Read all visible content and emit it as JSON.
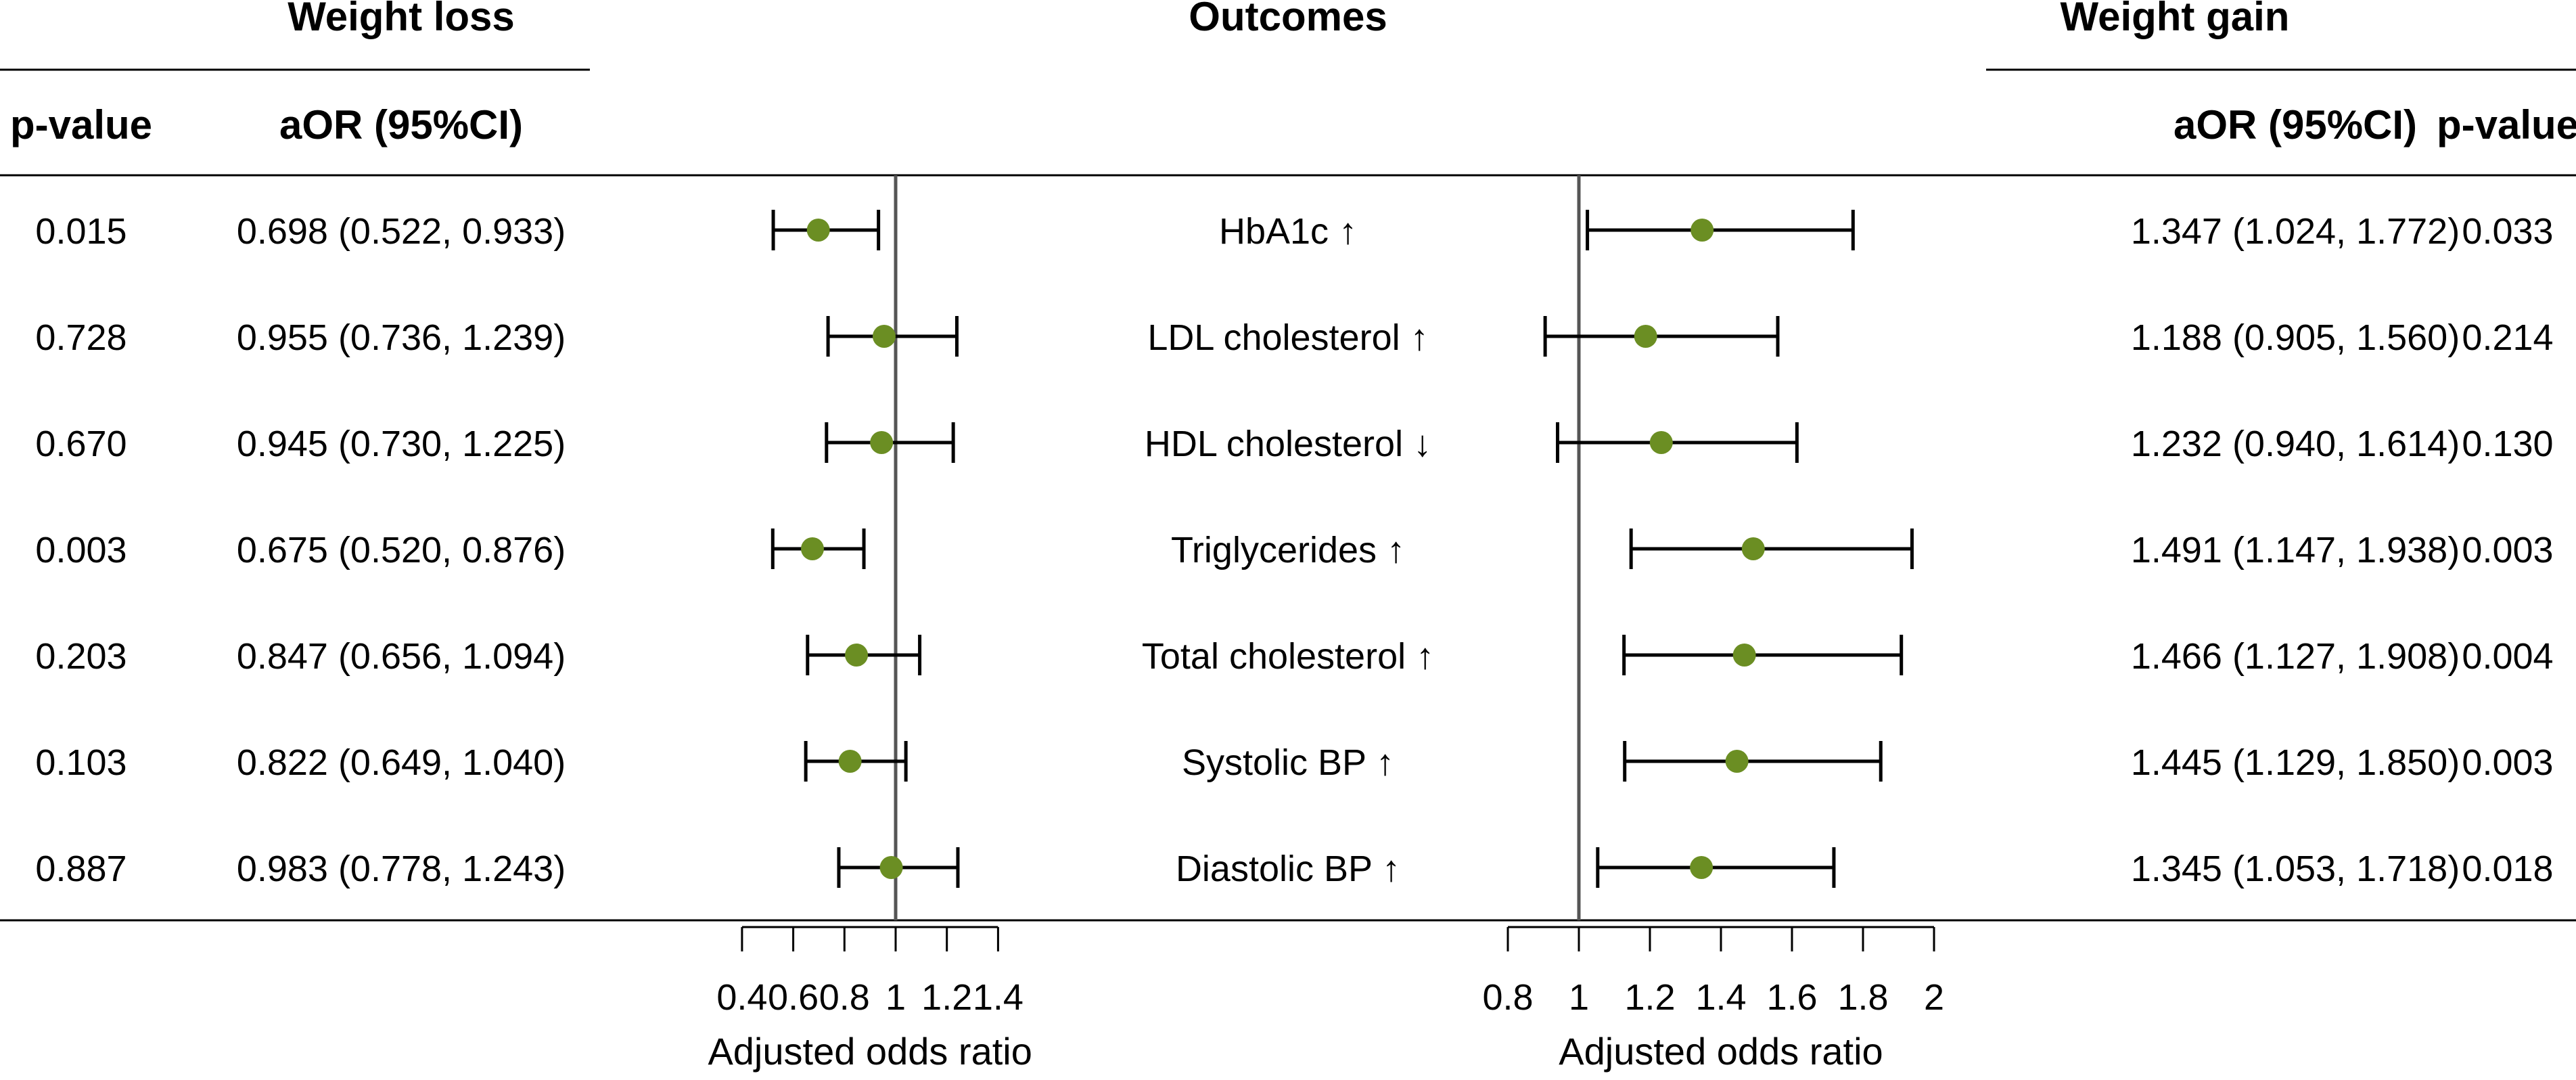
{
  "headers": {
    "weight_loss": "Weight loss",
    "outcomes": "Outcomes",
    "weight_gain": "Weight gain",
    "p_value_left": "p-value",
    "aor_left": "aOR (95%CI)",
    "aor_right": "aOR (95%CI)",
    "p_value_right": "p-value"
  },
  "chart_data": {
    "type": "forest",
    "colors": {
      "point": "#6b8e23",
      "reference_line": "#555555",
      "whisker": "#000000"
    },
    "outcomes": [
      "HbA1c ↑",
      "LDL cholesterol ↑",
      "HDL cholesterol ↓",
      "Triglycerides ↑",
      "Total cholesterol ↑",
      "Systolic BP ↑",
      "Diastolic BP ↑"
    ],
    "panels": [
      {
        "name": "Weight loss",
        "xlabel": "Adjusted odds ratio",
        "xlim": [
          0.4,
          1.4
        ],
        "xticks": [
          0.4,
          0.6,
          0.8,
          1,
          1.2,
          1.4
        ],
        "xtick_labels": [
          "0.4",
          "0.6",
          "0.8",
          "1",
          "1.2",
          "1.4"
        ],
        "reference": 1,
        "estimates": [
          0.698,
          0.955,
          0.945,
          0.675,
          0.847,
          0.822,
          0.983
        ],
        "lower": [
          0.522,
          0.736,
          0.73,
          0.52,
          0.656,
          0.649,
          0.778
        ],
        "upper": [
          0.933,
          1.239,
          1.225,
          0.876,
          1.094,
          1.04,
          1.243
        ],
        "aor_text": [
          "0.698 (0.522, 0.933)",
          "0.955 (0.736, 1.239)",
          "0.945 (0.730, 1.225)",
          "0.675 (0.520, 0.876)",
          "0.847 (0.656, 1.094)",
          "0.822 (0.649, 1.040)",
          "0.983 (0.778, 1.243)"
        ],
        "p_values": [
          "0.015",
          "0.728",
          "0.670",
          "0.003",
          "0.203",
          "0.103",
          "0.887"
        ]
      },
      {
        "name": "Weight gain",
        "xlabel": "Adjusted odds ratio",
        "xlim": [
          0.8,
          2
        ],
        "xticks": [
          0.8,
          1,
          1.2,
          1.4,
          1.6,
          1.8,
          2
        ],
        "xtick_labels": [
          "0.8",
          "1",
          "1.2",
          "1.4",
          "1.6",
          "1.8",
          "2"
        ],
        "reference": 1,
        "estimates": [
          1.347,
          1.188,
          1.232,
          1.491,
          1.466,
          1.445,
          1.345
        ],
        "lower": [
          1.024,
          0.905,
          0.94,
          1.147,
          1.127,
          1.129,
          1.053
        ],
        "upper": [
          1.772,
          1.56,
          1.614,
          1.938,
          1.908,
          1.85,
          1.718
        ],
        "aor_text": [
          "1.347 (1.024, 1.772)",
          "1.188 (0.905, 1.560)",
          "1.232 (0.940, 1.614)",
          "1.491 (1.147, 1.938)",
          "1.466 (1.127, 1.908)",
          "1.445 (1.129, 1.850)",
          "1.345 (1.053, 1.718)"
        ],
        "p_values": [
          "0.033",
          "0.214",
          "0.130",
          "0.003",
          "0.004",
          "0.003",
          "0.018"
        ]
      }
    ]
  }
}
